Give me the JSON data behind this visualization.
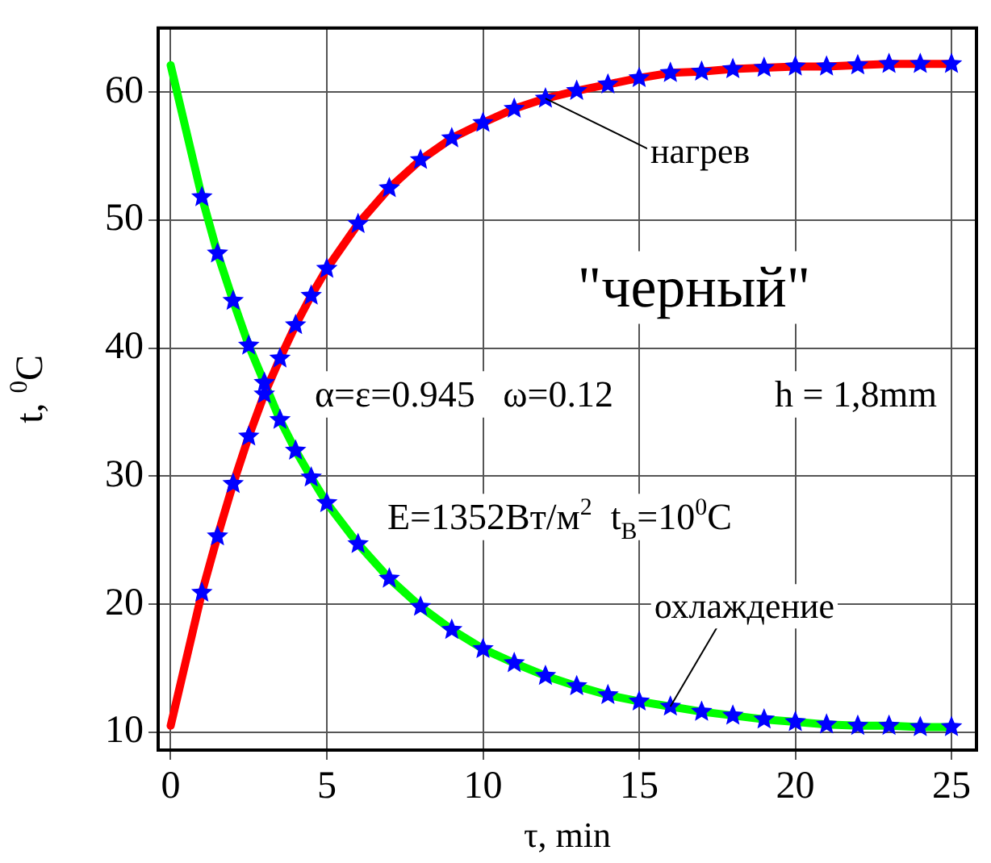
{
  "chart_data": {
    "type": "line",
    "xlabel": "τ, min",
    "ylabel": "t, $^{0}$C",
    "xlim": [
      -0.4,
      25.8
    ],
    "ylim": [
      8.6,
      65
    ],
    "xticks": [
      0,
      5,
      10,
      15,
      20,
      25
    ],
    "yticks": [
      10,
      20,
      30,
      40,
      50,
      60
    ],
    "grid": true,
    "series": [
      {
        "type": "line",
        "color": "#ff0000",
        "marker": "none",
        "line_style": "solid",
        "x": [
          0,
          1,
          1.5,
          2,
          2.5,
          3,
          3.5,
          4,
          4.5,
          5,
          6,
          7,
          8,
          9,
          10,
          11,
          12,
          13,
          14,
          15,
          16,
          17,
          18,
          19,
          20,
          21,
          22,
          23,
          24,
          25
        ],
        "values": [
          10.5,
          20.9,
          25.3,
          29.4,
          33.1,
          36.4,
          39.2,
          41.8,
          44.1,
          46.2,
          49.7,
          52.5,
          54.7,
          56.4,
          57.6,
          58.7,
          59.5,
          60.1,
          60.6,
          61.1,
          61.5,
          61.6,
          61.8,
          61.9,
          62.0,
          62.0,
          62.1,
          62.2,
          62.2,
          62.2
        ]
      },
      {
        "type": "line",
        "color": "#00ff00",
        "marker": "none",
        "line_style": "solid",
        "x": [
          0,
          1,
          1.5,
          2,
          2.5,
          3,
          3.5,
          4,
          4.5,
          5,
          6,
          7,
          8,
          9,
          10,
          11,
          12,
          13,
          14,
          15,
          16,
          17,
          18,
          19,
          20,
          21,
          22,
          23,
          24,
          25
        ],
        "values": [
          62.1,
          51.8,
          47.4,
          43.7,
          40.2,
          37.3,
          34.4,
          32.0,
          29.9,
          27.9,
          24.7,
          22.0,
          19.8,
          18.0,
          16.5,
          15.4,
          14.4,
          13.6,
          12.9,
          12.4,
          12.0,
          11.6,
          11.3,
          11.0,
          10.8,
          10.6,
          10.5,
          10.5,
          10.4,
          10.4
        ]
      },
      {
        "type": "scatter",
        "color": "#0000ff",
        "marker": "star",
        "x": [
          1,
          1.5,
          2,
          2.5,
          3,
          3.5,
          4,
          4.5,
          5,
          6,
          7,
          8,
          9,
          10,
          11,
          12,
          13,
          14,
          15,
          16,
          17,
          18,
          19,
          20,
          21,
          22,
          23,
          24,
          25
        ],
        "values": [
          20.9,
          25.3,
          29.4,
          33.1,
          36.4,
          39.2,
          41.8,
          44.1,
          46.2,
          49.7,
          52.5,
          54.7,
          56.4,
          57.6,
          58.7,
          59.5,
          60.1,
          60.6,
          61.1,
          61.5,
          61.6,
          61.8,
          61.9,
          62.0,
          62.0,
          62.1,
          62.2,
          62.2,
          62.2
        ]
      },
      {
        "type": "scatter",
        "color": "#0000ff",
        "marker": "star",
        "x": [
          1,
          1.5,
          2,
          2.5,
          3,
          3.5,
          4,
          4.5,
          5,
          6,
          7,
          8,
          9,
          10,
          11,
          12,
          13,
          14,
          15,
          16,
          17,
          18,
          19,
          20,
          21,
          22,
          23,
          24,
          25
        ],
        "values": [
          51.8,
          47.4,
          43.7,
          40.2,
          37.3,
          34.4,
          32.0,
          29.9,
          27.9,
          24.7,
          22.0,
          19.8,
          18.0,
          16.5,
          15.4,
          14.4,
          13.6,
          12.9,
          12.4,
          12.0,
          11.6,
          11.3,
          11.0,
          10.8,
          10.6,
          10.5,
          10.5,
          10.4,
          10.4
        ]
      }
    ],
    "annotations": [
      {
        "text": "нагрев",
        "x": 12,
        "y": 59.5
      },
      {
        "text": "охлаждение",
        "x": 16,
        "y": 12.0
      },
      "\"черный\"",
      "α=ε=0.945   ω=0.12",
      "h = 1,8mm",
      "E=1352Вт/м$^{2}$  t$_{В}$=10$^{0}$C"
    ]
  }
}
